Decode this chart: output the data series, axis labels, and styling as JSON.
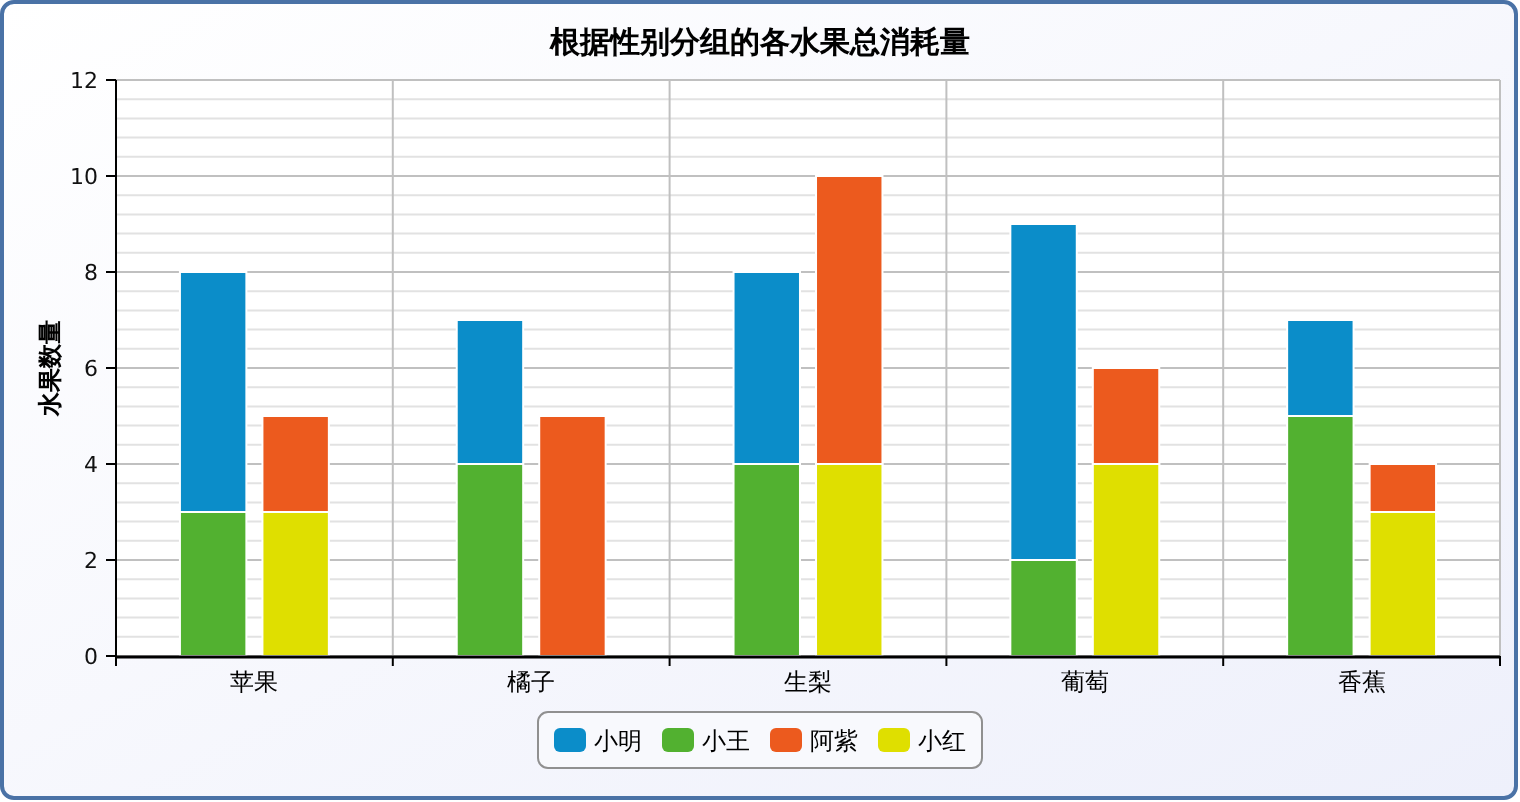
{
  "chart_data": {
    "type": "bar",
    "title": "根据性别分组的各水果总消耗量",
    "ylabel": "水果数量",
    "categories": [
      "苹果",
      "橘子",
      "生梨",
      "葡萄",
      "香蕉"
    ],
    "series": [
      {
        "name": "小明",
        "color": "#0b8dc9",
        "base": [
          3,
          4,
          4,
          2,
          5
        ],
        "values": [
          5,
          3,
          4,
          7,
          2
        ]
      },
      {
        "name": "小王",
        "color": "#52b130",
        "values": [
          3,
          4,
          4,
          2,
          5
        ]
      },
      {
        "name": "阿紫",
        "color": "#ec5a1e",
        "base": [
          3,
          0,
          4,
          4,
          3
        ],
        "values": [
          2,
          5,
          6,
          2,
          1
        ]
      },
      {
        "name": "小红",
        "color": "#dfdf00",
        "values": [
          3,
          0,
          4,
          4,
          3
        ]
      }
    ],
    "ylim": [
      0,
      12
    ],
    "yticks": [
      0,
      {
        "value": 0.4,
        "label": null
      },
      {
        "value": 0.8,
        "label": null
      },
      {
        "value": 1.2,
        "label": null
      },
      {
        "value": 1.6,
        "label": null
      },
      2,
      {
        "value": 2.4,
        "label": null
      },
      {
        "value": 2.8,
        "label": null
      },
      {
        "value": 3.2,
        "label": null
      },
      {
        "value": 3.6,
        "label": null
      },
      4,
      {
        "value": 4.4,
        "label": null
      },
      {
        "value": 4.8,
        "label": null
      },
      {
        "value": 5.2,
        "label": null
      },
      {
        "value": 5.6,
        "label": null
      },
      6,
      {
        "value": 6.4,
        "label": null
      },
      {
        "value": 6.8,
        "label": null
      },
      {
        "value": 7.2,
        "label": null
      },
      {
        "value": 7.6,
        "label": null
      },
      8,
      {
        "value": 8.4,
        "label": null
      },
      {
        "value": 8.8,
        "label": null
      },
      {
        "value": 9.2,
        "label": null
      },
      {
        "value": 9.6,
        "label": null
      },
      10,
      {
        "value": 10.4,
        "label": null
      },
      {
        "value": 10.8,
        "label": null
      },
      {
        "value": 11.2,
        "label": null
      },
      {
        "value": 11.6,
        "label": null
      },
      12
    ],
    "grid": true,
    "legend": "bottom"
  }
}
